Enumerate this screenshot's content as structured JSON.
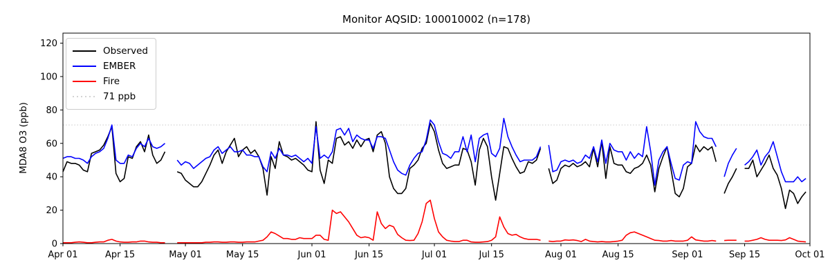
{
  "chart_data": {
    "type": "line",
    "title": "Monitor AQSID: 100010002 (n=178)",
    "ylabel": "MDA8 O3 (ppb)",
    "xlabel": "",
    "ylim": [
      0,
      126
    ],
    "yticks": [
      0,
      20,
      40,
      60,
      80,
      100,
      120
    ],
    "x_unit": "day",
    "n_days": 183,
    "x_start_label": "Apr 01",
    "x_end_label": "Oct 01",
    "xticks": [
      {
        "day": 0,
        "label": "Apr 01"
      },
      {
        "day": 14,
        "label": "Apr 15"
      },
      {
        "day": 30,
        "label": "May 01"
      },
      {
        "day": 44,
        "label": "May 15"
      },
      {
        "day": 61,
        "label": "Jun 01"
      },
      {
        "day": 75,
        "label": "Jun 15"
      },
      {
        "day": 91,
        "label": "Jul 01"
      },
      {
        "day": 105,
        "label": "Jul 15"
      },
      {
        "day": 122,
        "label": "Aug 01"
      },
      {
        "day": 136,
        "label": "Aug 15"
      },
      {
        "day": 153,
        "label": "Sep 01"
      },
      {
        "day": 167,
        "label": "Sep 15"
      },
      {
        "day": 183,
        "label": "Oct 01"
      }
    ],
    "grid": false,
    "legend_position": "upper left",
    "threshold": {
      "label": "71 ppb",
      "value": 71,
      "color": "#d3d3d3",
      "style": "dotted"
    },
    "series": [
      {
        "name": "Observed",
        "color": "#000000",
        "style": "solid",
        "values": [
          43,
          49,
          48,
          48,
          47,
          44,
          43,
          54,
          55,
          56,
          59,
          64,
          70,
          42,
          37,
          39,
          52,
          51,
          58,
          61,
          55,
          65,
          53,
          48,
          50,
          55,
          null,
          null,
          43,
          42,
          38,
          36,
          34,
          34,
          37,
          42,
          47,
          53,
          56,
          48,
          55,
          59,
          63,
          52,
          56,
          58,
          54,
          56,
          52,
          45,
          29,
          52,
          45,
          61,
          53,
          52,
          50,
          51,
          49,
          47,
          44,
          43,
          73,
          44,
          36,
          50,
          48,
          63,
          64,
          59,
          61,
          57,
          62,
          58,
          62,
          63,
          55,
          65,
          67,
          60,
          40,
          33,
          30,
          30,
          33,
          45,
          47,
          50,
          57,
          60,
          72,
          67,
          56,
          48,
          45,
          46,
          47,
          47,
          57,
          56,
          49,
          35,
          56,
          63,
          58,
          40,
          26,
          42,
          58,
          57,
          51,
          46,
          42,
          43,
          49,
          48,
          50,
          57,
          null,
          45,
          36,
          38,
          45,
          47,
          46,
          48,
          46,
          47,
          49,
          46,
          57,
          46,
          61,
          39,
          58,
          48,
          47,
          47,
          43,
          42,
          45,
          46,
          48,
          53,
          47,
          31,
          45,
          52,
          58,
          44,
          30,
          28,
          33,
          46,
          48,
          59,
          55,
          58,
          56,
          58,
          49,
          null,
          30,
          36,
          40,
          45,
          null,
          45,
          45,
          50,
          40,
          44,
          48,
          53,
          45,
          41,
          33,
          21,
          32,
          30,
          24,
          28,
          31
        ]
      },
      {
        "name": "EMBER",
        "color": "#0000ff",
        "style": "solid",
        "values": [
          51,
          52,
          52,
          51,
          51,
          50,
          48,
          52,
          54,
          55,
          57,
          63,
          71,
          50,
          48,
          48,
          53,
          52,
          57,
          60,
          58,
          63,
          58,
          57,
          58,
          60,
          null,
          null,
          50,
          47,
          49,
          48,
          45,
          47,
          49,
          51,
          52,
          56,
          58,
          54,
          56,
          58,
          55,
          55,
          56,
          53,
          53,
          52,
          52,
          46,
          43,
          55,
          51,
          57,
          53,
          53,
          52,
          53,
          51,
          49,
          51,
          48,
          70,
          51,
          53,
          51,
          55,
          68,
          69,
          65,
          69,
          61,
          65,
          63,
          62,
          62,
          57,
          64,
          64,
          63,
          56,
          49,
          44,
          42,
          41,
          47,
          51,
          54,
          55,
          62,
          74,
          71,
          61,
          54,
          53,
          51,
          55,
          55,
          64,
          55,
          65,
          49,
          63,
          65,
          66,
          54,
          52,
          57,
          75,
          64,
          58,
          53,
          49,
          50,
          50,
          50,
          52,
          58,
          null,
          59,
          43,
          44,
          49,
          50,
          49,
          50,
          48,
          49,
          53,
          51,
          58,
          49,
          62,
          48,
          60,
          56,
          55,
          55,
          50,
          55,
          51,
          54,
          52,
          70,
          55,
          35,
          50,
          55,
          58,
          48,
          39,
          38,
          47,
          49,
          48,
          73,
          67,
          64,
          63,
          63,
          58,
          null,
          40,
          48,
          53,
          57,
          null,
          47,
          49,
          52,
          56,
          47,
          52,
          55,
          61,
          52,
          43,
          37,
          37,
          37,
          40,
          37,
          39
        ]
      },
      {
        "name": "Fire",
        "color": "#ff0000",
        "style": "solid",
        "values": [
          0.5,
          0.5,
          0.5,
          0.8,
          1,
          0.8,
          0.5,
          0.5,
          0.8,
          1,
          1,
          2,
          2.5,
          1.5,
          1,
          0.8,
          0.8,
          1,
          1,
          1.5,
          1.5,
          1,
          0.8,
          0.8,
          0.5,
          0.5,
          null,
          null,
          0.5,
          0.5,
          0.5,
          0.5,
          0.5,
          0.5,
          0.5,
          0.8,
          0.8,
          1,
          1,
          0.8,
          0.8,
          1,
          1,
          0.8,
          0.8,
          1,
          1,
          1,
          1.5,
          2,
          4,
          7,
          6,
          4.5,
          3,
          3,
          2.5,
          2.5,
          3.5,
          3,
          3,
          3,
          5,
          5,
          2.5,
          2,
          20,
          18,
          19,
          16,
          13,
          9,
          5,
          3.5,
          4,
          3.5,
          2,
          19,
          12,
          9,
          11,
          10,
          5.5,
          3.5,
          2,
          1.8,
          2,
          6,
          13,
          24,
          26,
          15,
          7,
          4,
          2,
          1.5,
          1.2,
          1.2,
          2,
          2,
          1,
          0.8,
          0.8,
          1,
          1.2,
          2,
          4,
          16,
          10,
          6,
          5,
          5.5,
          4,
          3,
          2.5,
          2.5,
          2.5,
          2,
          null,
          1.5,
          1.2,
          1.5,
          1.5,
          2.2,
          2,
          2.2,
          1.8,
          1.2,
          2.5,
          1.5,
          1.2,
          1,
          1.2,
          1,
          1,
          1.2,
          1.5,
          2,
          5,
          6.5,
          7,
          6,
          5,
          4,
          3,
          2,
          1.8,
          1.5,
          1.5,
          1.8,
          1.5,
          1.5,
          1.5,
          2,
          4,
          2.2,
          1.8,
          1.5,
          1.5,
          1.8,
          1.5,
          null,
          1.8,
          2,
          2,
          2,
          null,
          1.5,
          1.5,
          2,
          2.5,
          3.5,
          2.5,
          2,
          2,
          2,
          1.8,
          2.2,
          3.5,
          2.5,
          1.5,
          1.2,
          1
        ]
      }
    ],
    "legend": [
      {
        "label": "Observed",
        "color": "#000000",
        "style": "solid"
      },
      {
        "label": "EMBER",
        "color": "#0000ff",
        "style": "solid"
      },
      {
        "label": "Fire",
        "color": "#ff0000",
        "style": "solid"
      },
      {
        "label": "71 ppb",
        "color": "#d3d3d3",
        "style": "dotted"
      }
    ]
  }
}
